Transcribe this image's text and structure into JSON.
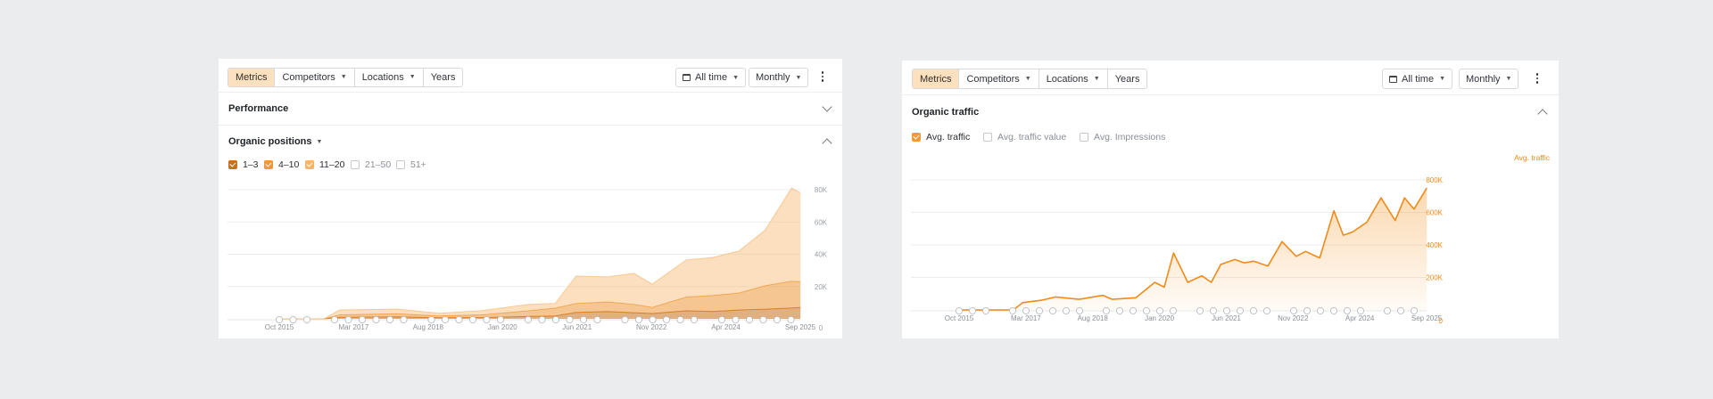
{
  "left_panel": {
    "toolbar": {
      "tabs": [
        "Metrics",
        "Competitors",
        "Locations",
        "Years"
      ],
      "active_tab": "Metrics",
      "date_range": "All time",
      "interval": "Monthly"
    },
    "performance_title": "Performance",
    "positions_title": "Organic positions",
    "legend": [
      {
        "label": "1–3",
        "checked": true,
        "color": "#c97018"
      },
      {
        "label": "4–10",
        "checked": true,
        "color": "#ee9838"
      },
      {
        "label": "11–20",
        "checked": true,
        "color": "#f8c48a"
      },
      {
        "label": "21–50",
        "checked": false
      },
      {
        "label": "51+",
        "checked": false
      }
    ]
  },
  "right_panel": {
    "toolbar": {
      "tabs": [
        "Metrics",
        "Competitors",
        "Locations",
        "Years"
      ],
      "active_tab": "Metrics",
      "date_range": "All time",
      "interval": "Monthly"
    },
    "section_title": "Organic traffic",
    "legend": [
      {
        "label": "Avg. traffic",
        "checked": true
      },
      {
        "label": "Avg. traffic value",
        "checked": false
      },
      {
        "label": "Avg. Impressions",
        "checked": false
      }
    ]
  },
  "chart_data": [
    {
      "type": "area",
      "stacked": true,
      "x_labels": [
        "Oct 2015",
        "Mar 2017",
        "Aug 2018",
        "Jan 2020",
        "Jun 2021",
        "Nov 2022",
        "Apr 2024",
        "Sep 2025"
      ],
      "x_range": [
        "2015-10",
        "2025-09"
      ],
      "y_ticks": [
        "80K",
        "60K",
        "40K",
        "20K",
        "0"
      ],
      "ylim": [
        0,
        80000
      ],
      "grid": true,
      "series": [
        {
          "name": "1–3",
          "color": "#c97018",
          "x": [
            2015.75,
            2016.6,
            2016.9,
            2018.0,
            2018.8,
            2019.6,
            2020.5,
            2021.0,
            2021.4,
            2022.0,
            2022.5,
            2022.85,
            2023.5,
            2024.0,
            2024.5,
            2025.0,
            2025.5,
            2025.67
          ],
          "y": [
            0,
            0,
            1000,
            1200,
            700,
            800,
            1500,
            1800,
            4000,
            4500,
            3800,
            3300,
            5000,
            4500,
            5500,
            6000,
            6800,
            7000
          ]
        },
        {
          "name": "4–10",
          "color": "#ee9838",
          "x": [
            2015.75,
            2016.6,
            2016.9,
            2018.0,
            2018.8,
            2019.6,
            2020.5,
            2021.0,
            2021.4,
            2022.0,
            2022.5,
            2022.85,
            2023.5,
            2024.0,
            2024.5,
            2025.0,
            2025.5,
            2025.67
          ],
          "y": [
            0,
            0,
            1500,
            2000,
            1100,
            1700,
            3500,
            4800,
            5500,
            6000,
            5200,
            3800,
            8500,
            10000,
            10500,
            14500,
            16500,
            16000
          ]
        },
        {
          "name": "11–20",
          "color": "#f8c48a",
          "x": [
            2015.75,
            2016.6,
            2016.9,
            2018.0,
            2018.8,
            2019.6,
            2020.5,
            2021.0,
            2021.4,
            2022.0,
            2022.5,
            2022.85,
            2023.5,
            2024.0,
            2024.5,
            2025.0,
            2025.5,
            2025.67
          ],
          "y": [
            0,
            0,
            3000,
            2800,
            1700,
            2500,
            4000,
            2900,
            17000,
            15500,
            19200,
            14400,
            23000,
            23500,
            26000,
            34500,
            57700,
            55000
          ]
        }
      ]
    },
    {
      "type": "area",
      "x_labels": [
        "Oct 2015",
        "Mar 2017",
        "Aug 2018",
        "Jan 2020",
        "Jun 2021",
        "Nov 2022",
        "Apr 2024",
        "Sep 2025"
      ],
      "x_range": [
        "2015-10",
        "2025-09"
      ],
      "y_ticks": [
        "800K",
        "600K",
        "400K",
        "200K",
        "0"
      ],
      "ylim": [
        0,
        800000
      ],
      "y_axis_title": "Avg. traffic",
      "grid": true,
      "series": [
        {
          "name": "Avg. traffic",
          "color": "#f08a19",
          "x": [
            2015.75,
            2016.9,
            2017.1,
            2017.5,
            2017.8,
            2018.3,
            2018.8,
            2019.0,
            2019.5,
            2019.9,
            2020.1,
            2020.3,
            2020.6,
            2020.9,
            2021.1,
            2021.3,
            2021.6,
            2021.8,
            2022.0,
            2022.3,
            2022.6,
            2022.9,
            2023.1,
            2023.4,
            2023.7,
            2023.9,
            2024.1,
            2024.4,
            2024.7,
            2025.0,
            2025.2,
            2025.4,
            2025.67
          ],
          "y": [
            0,
            0,
            45000,
            60000,
            80000,
            65000,
            90000,
            65000,
            75000,
            170000,
            140000,
            350000,
            170000,
            210000,
            170000,
            280000,
            310000,
            290000,
            300000,
            270000,
            420000,
            330000,
            360000,
            320000,
            610000,
            460000,
            480000,
            540000,
            690000,
            550000,
            690000,
            620000,
            750000
          ]
        }
      ]
    }
  ]
}
